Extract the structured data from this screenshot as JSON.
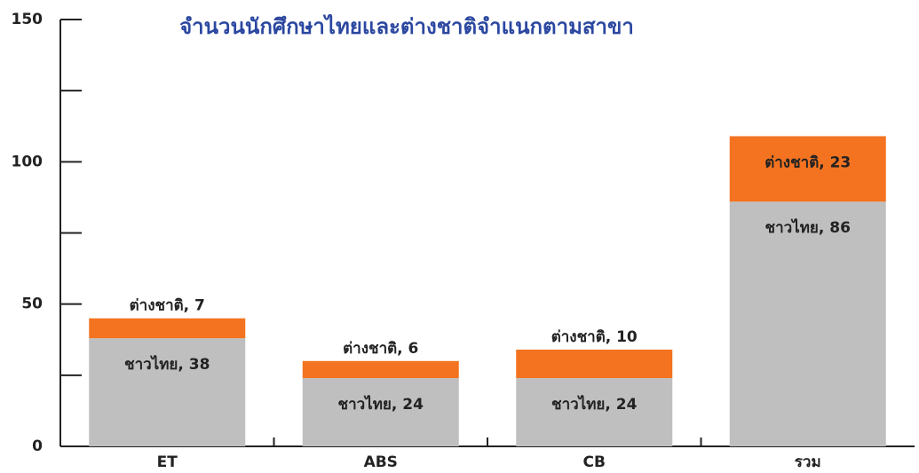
{
  "chart_data": {
    "type": "stacked_bar",
    "title": "จำนวนนักศึกษาไทยและต่างชาติจำแนกตามสาขา",
    "categories": [
      "ET",
      "ABS",
      "CB",
      "รวม"
    ],
    "series": [
      {
        "name": "ชาวไทย",
        "color": "#bfbfbf",
        "values": [
          38,
          24,
          24,
          86
        ],
        "value_labels": [
          "ชาวไทย, 38",
          "ชาวไทย, 24",
          "ชาวไทย, 24",
          "ชาวไทย, 86"
        ]
      },
      {
        "name": "ต่างชาติ",
        "color": "#f47320",
        "values": [
          7,
          6,
          10,
          23
        ],
        "value_labels": [
          "ต่างชาติ, 7",
          "ต่างชาติ, 6",
          "ต่างชาติ, 10",
          "ต่างชาติ, 23"
        ]
      }
    ],
    "ylim": [
      0,
      150
    ],
    "yticks": [
      0,
      50,
      100,
      150
    ],
    "yticks_minor": [
      25,
      75,
      125
    ],
    "title_color": "#2b47a0"
  }
}
